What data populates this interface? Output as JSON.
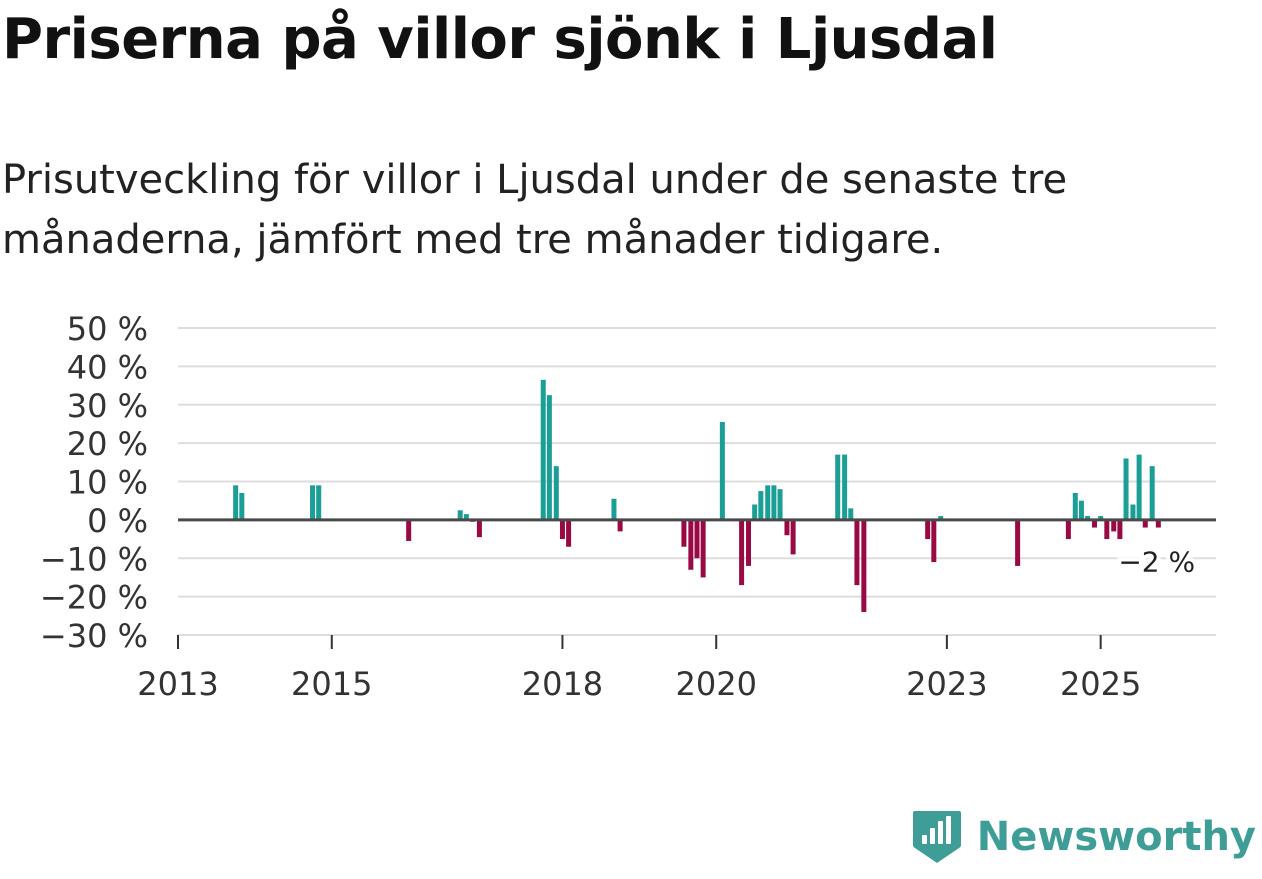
{
  "header": {
    "title": "Priserna på villor sjönk i Ljusdal",
    "subtitle": "Prisutveckling för villor i Ljusdal under de senaste tre månaderna, jämfört med tre månader tidigare."
  },
  "chart_data": {
    "type": "bar",
    "title": "Priserna på villor sjönk i Ljusdal",
    "subtitle": "Prisutveckling för villor i Ljusdal under de senaste tre månaderna, jämfört med tre månader tidigare.",
    "xlabel": "",
    "ylabel": "",
    "x_axis": {
      "min": 2013.0,
      "max": 2026.5,
      "ticks": [
        2013,
        2015,
        2018,
        2020,
        2023,
        2025
      ],
      "tick_labels": [
        "2013",
        "2015",
        "2018",
        "2020",
        "2023",
        "2025"
      ]
    },
    "y_axis": {
      "min": -30,
      "max": 50,
      "ticks": [
        -30,
        -20,
        -10,
        0,
        10,
        20,
        30,
        40,
        50
      ],
      "tick_labels": [
        "−30 %",
        "−20 %",
        "−10 %",
        "0 %",
        "10 %",
        "20 %",
        "30 %",
        "40 %",
        "50 %"
      ]
    },
    "grid": true,
    "colors": {
      "positive": "#1a9e96",
      "negative": "#990a45",
      "grid": "#dddddd",
      "zero_line": "#4a4a4a",
      "tick_text": "#333333"
    },
    "series": [
      {
        "name": "Prisutveckling",
        "points": [
          {
            "x": 2013.75,
            "value": 9
          },
          {
            "x": 2013.83,
            "value": 7
          },
          {
            "x": 2014.75,
            "value": 9
          },
          {
            "x": 2014.83,
            "value": 9
          },
          {
            "x": 2016.0,
            "value": -5.5
          },
          {
            "x": 2016.67,
            "value": 2.5
          },
          {
            "x": 2016.75,
            "value": 1.5
          },
          {
            "x": 2016.83,
            "value": -0.5
          },
          {
            "x": 2016.92,
            "value": -4.5
          },
          {
            "x": 2017.75,
            "value": 36.5
          },
          {
            "x": 2017.83,
            "value": 32.5
          },
          {
            "x": 2017.92,
            "value": 14
          },
          {
            "x": 2018.0,
            "value": -5
          },
          {
            "x": 2018.08,
            "value": -7
          },
          {
            "x": 2018.67,
            "value": 5.5
          },
          {
            "x": 2018.75,
            "value": -3
          },
          {
            "x": 2019.58,
            "value": -7
          },
          {
            "x": 2019.67,
            "value": -13
          },
          {
            "x": 2019.75,
            "value": -10
          },
          {
            "x": 2019.83,
            "value": -15
          },
          {
            "x": 2020.08,
            "value": 25.5
          },
          {
            "x": 2020.33,
            "value": -17
          },
          {
            "x": 2020.42,
            "value": -12
          },
          {
            "x": 2020.5,
            "value": 4
          },
          {
            "x": 2020.58,
            "value": 7.5
          },
          {
            "x": 2020.67,
            "value": 9
          },
          {
            "x": 2020.75,
            "value": 9
          },
          {
            "x": 2020.83,
            "value": 8
          },
          {
            "x": 2020.92,
            "value": -4
          },
          {
            "x": 2021.0,
            "value": -9
          },
          {
            "x": 2021.58,
            "value": 17
          },
          {
            "x": 2021.67,
            "value": 17
          },
          {
            "x": 2021.75,
            "value": 3
          },
          {
            "x": 2021.83,
            "value": -17
          },
          {
            "x": 2021.92,
            "value": -24
          },
          {
            "x": 2022.75,
            "value": -5
          },
          {
            "x": 2022.83,
            "value": -11
          },
          {
            "x": 2022.92,
            "value": 1
          },
          {
            "x": 2023.92,
            "value": -12
          },
          {
            "x": 2024.58,
            "value": -5
          },
          {
            "x": 2024.67,
            "value": 7
          },
          {
            "x": 2024.75,
            "value": 5
          },
          {
            "x": 2024.83,
            "value": 1
          },
          {
            "x": 2024.92,
            "value": -2
          },
          {
            "x": 2025.0,
            "value": 1
          },
          {
            "x": 2025.08,
            "value": -5
          },
          {
            "x": 2025.17,
            "value": -3
          },
          {
            "x": 2025.25,
            "value": -5
          },
          {
            "x": 2025.33,
            "value": 16
          },
          {
            "x": 2025.42,
            "value": 4
          },
          {
            "x": 2025.5,
            "value": 17
          },
          {
            "x": 2025.58,
            "value": -2
          },
          {
            "x": 2025.67,
            "value": 14
          },
          {
            "x": 2025.75,
            "value": -2
          }
        ]
      }
    ],
    "annotations": [
      {
        "text": "−2 %",
        "x": 2025.75,
        "value": -2
      }
    ]
  },
  "branding": {
    "name": "Newsworthy",
    "icon": "newsworthy-logo-icon",
    "color": "#3e9e97"
  }
}
